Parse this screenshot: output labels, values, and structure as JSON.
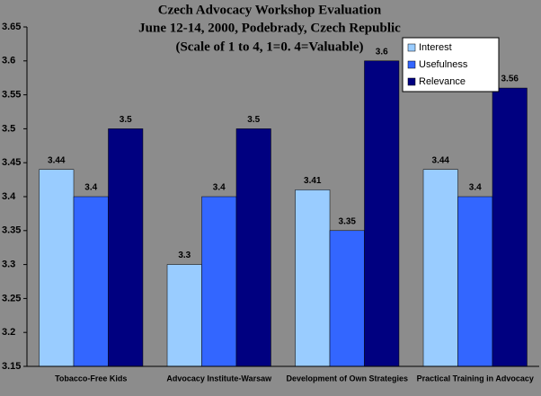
{
  "chart_data": {
    "type": "bar",
    "title": "Czech Advocacy Workshop Evaluation",
    "subtitle": [
      "June 12-14, 2000, Podebrady, Czech Republic",
      "(Scale of 1 to 4, 1=0. 4=Valuable)"
    ],
    "categories": [
      "Tobacco-Free Kids",
      "Advocacy Institute-Warsaw",
      "Development of Own Strategies",
      "Practical Training in Advocacy"
    ],
    "series": [
      {
        "name": "Interest",
        "color": "#99ccff",
        "values": [
          3.44,
          3.3,
          3.41,
          3.44
        ]
      },
      {
        "name": "Usefulness",
        "color": "#3366ff",
        "values": [
          3.4,
          3.4,
          3.35,
          3.4
        ]
      },
      {
        "name": "Relevance",
        "color": "#000080",
        "values": [
          3.5,
          3.5,
          3.6,
          3.56
        ]
      }
    ],
    "ylim": [
      3.15,
      3.65
    ],
    "yticks": [
      3.15,
      3.2,
      3.25,
      3.3,
      3.35,
      3.4,
      3.45,
      3.5,
      3.55,
      3.6,
      3.65
    ],
    "legend": "upper right"
  }
}
